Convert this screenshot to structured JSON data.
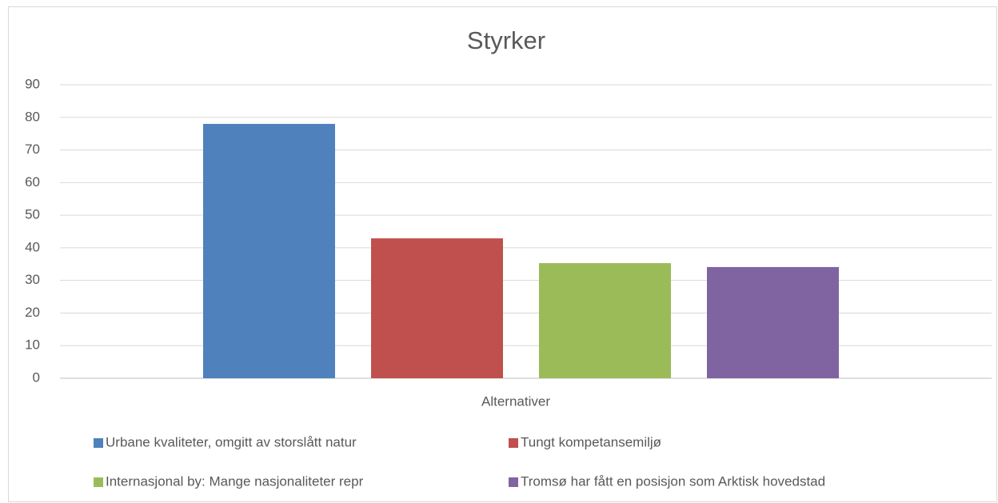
{
  "chart_data": {
    "type": "bar",
    "title": "Styrker",
    "x_label": "Alternativer",
    "categories": [
      "Alternativer"
    ],
    "series": [
      {
        "name": "Urbane kvaliteter, omgitt av storslått natur",
        "color": "#4f81bd",
        "values": [
          78
        ]
      },
      {
        "name": "Tungt kompetansemiljø",
        "color": "#c0504d",
        "values": [
          42.9
        ]
      },
      {
        "name": "Internasjonal by: Mange nasjonaliteter repr",
        "color": "#9bbb59",
        "values": [
          35.3
        ]
      },
      {
        "name": "Tromsø har fått en posisjon som Arktisk hovedstad",
        "color": "#8064a2",
        "values": [
          34.1
        ]
      }
    ],
    "ylim": [
      0,
      90
    ],
    "yticks": [
      0,
      10,
      20,
      30,
      40,
      50,
      60,
      70,
      80,
      90
    ],
    "grid": true,
    "legend": "bottom"
  }
}
